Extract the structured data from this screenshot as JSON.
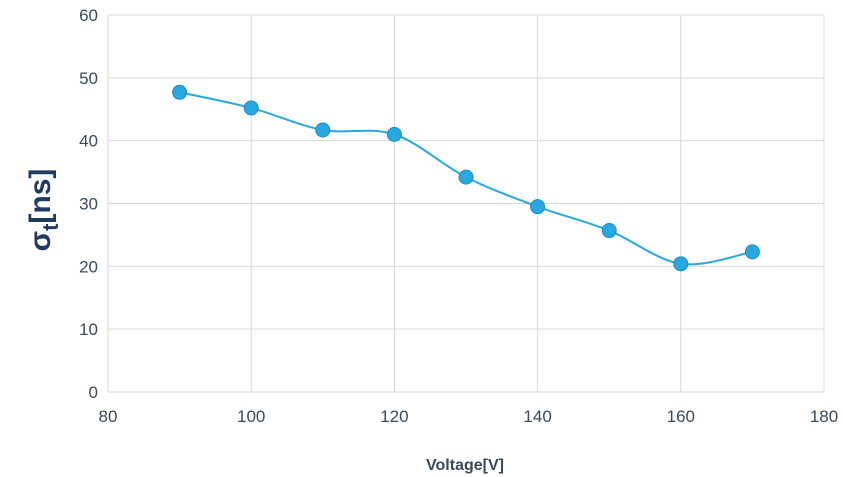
{
  "chart_data": {
    "type": "scatter",
    "x": [
      90,
      100,
      110,
      120,
      130,
      140,
      150,
      160,
      170
    ],
    "y": [
      47.7,
      45.2,
      41.7,
      41.0,
      34.2,
      29.5,
      25.7,
      20.4,
      22.3
    ],
    "xlim": [
      80,
      180
    ],
    "ylim": [
      0,
      60
    ],
    "xticks": [
      "80",
      "100",
      "120",
      "140",
      "160",
      "180"
    ],
    "yticks": [
      "0",
      "10",
      "20",
      "30",
      "40",
      "50",
      "60"
    ],
    "xlabel": "Voltage[V]",
    "ylabel_main": "σ",
    "ylabel_sub": "t",
    "ylabel_rest": "[ns]",
    "grid": true,
    "smoothed_line": true,
    "colors": {
      "series": "#29a8e0",
      "marker_fill": "#29a8e0",
      "grid": "#d9d9d9",
      "text": "#3b4a5a",
      "ylabel": "#1f3a5f"
    }
  }
}
